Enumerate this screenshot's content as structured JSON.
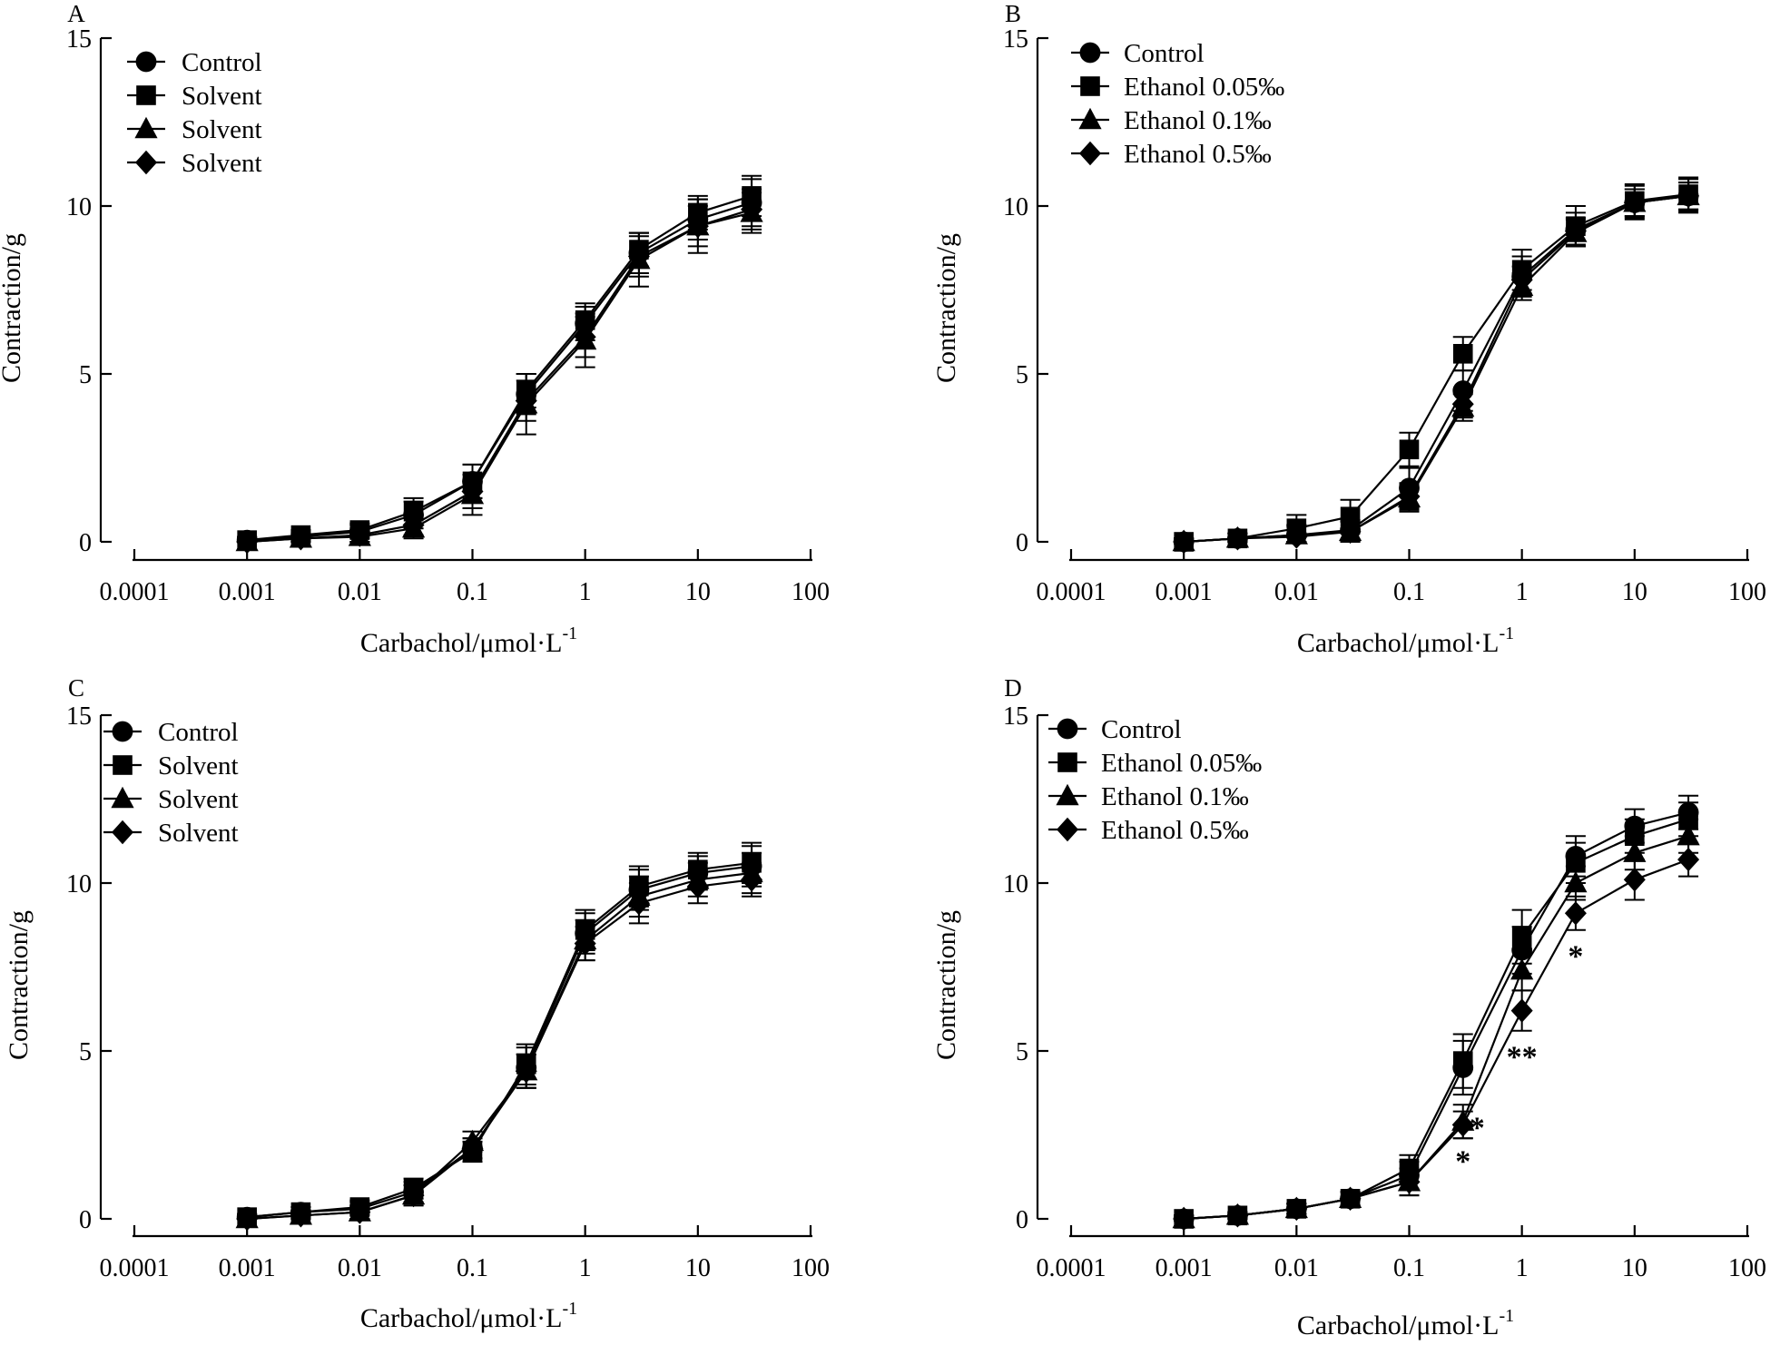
{
  "chart_data": [
    {
      "type": "line",
      "panel": "A",
      "xscale": "log",
      "xlim": [
        0.0001,
        100
      ],
      "ylim": [
        0,
        15
      ],
      "xticks": [
        "0.0001",
        "0.001",
        "0.01",
        "0.1",
        "1",
        "10",
        "100"
      ],
      "yticks": [
        "0",
        "5",
        "10",
        "15"
      ],
      "xlabel_main": "Carbachol/μmol·L",
      "xlabel_sup": "-1",
      "ylabel": "Contraction/g",
      "x": [
        0.001,
        0.003,
        0.01,
        0.03,
        0.1,
        0.3,
        1,
        3,
        10,
        30
      ],
      "series": [
        {
          "name": "Control",
          "marker": "circle",
          "values": [
            0.05,
            0.15,
            0.3,
            0.8,
            1.8,
            4.4,
            6.5,
            8.6,
            9.6,
            10.1
          ],
          "errors": [
            0.1,
            0.15,
            0.2,
            0.4,
            0.5,
            0.6,
            0.5,
            0.6,
            0.6,
            0.7
          ]
        },
        {
          "name": "Solvent",
          "marker": "square",
          "values": [
            0.05,
            0.2,
            0.35,
            0.9,
            1.8,
            4.5,
            6.6,
            8.7,
            9.8,
            10.3
          ],
          "errors": [
            0.1,
            0.15,
            0.2,
            0.4,
            0.5,
            0.5,
            0.5,
            0.5,
            0.5,
            0.6
          ]
        },
        {
          "name": "Solvent",
          "marker": "triangle",
          "values": [
            0.0,
            0.1,
            0.15,
            0.4,
            1.4,
            4.1,
            6.0,
            8.4,
            9.4,
            9.8
          ],
          "errors": [
            0.1,
            0.15,
            0.2,
            0.3,
            0.6,
            0.9,
            0.8,
            0.8,
            0.8,
            0.6
          ]
        },
        {
          "name": "Solvent",
          "marker": "diamond",
          "values": [
            0.0,
            0.1,
            0.2,
            0.5,
            1.5,
            4.2,
            6.1,
            8.5,
            9.4,
            9.9
          ],
          "errors": [
            0.1,
            0.15,
            0.2,
            0.3,
            0.5,
            0.6,
            0.6,
            0.6,
            0.6,
            0.6
          ]
        }
      ],
      "annotations": []
    },
    {
      "type": "line",
      "panel": "B",
      "xscale": "log",
      "xlim": [
        0.0001,
        100
      ],
      "ylim": [
        0,
        15
      ],
      "xticks": [
        "0.0001",
        "0.001",
        "0.01",
        "0.1",
        "1",
        "10",
        "100"
      ],
      "yticks": [
        "0",
        "5",
        "10",
        "15"
      ],
      "xlabel_main": "Carbachol/μmol·L",
      "xlabel_sup": "-1",
      "ylabel": "Contraction/g",
      "x": [
        0.001,
        0.003,
        0.01,
        0.03,
        0.1,
        0.3,
        1,
        3,
        10,
        30
      ],
      "series": [
        {
          "name": "Control",
          "marker": "circle",
          "values": [
            0.0,
            0.1,
            0.2,
            0.35,
            1.6,
            4.5,
            7.9,
            9.3,
            10.1,
            10.3
          ],
          "errors": [
            0.1,
            0.15,
            0.3,
            0.3,
            0.6,
            0.6,
            0.6,
            0.5,
            0.5,
            0.5
          ]
        },
        {
          "name": "Ethanol 0.05‰",
          "marker": "square",
          "values": [
            0.0,
            0.1,
            0.4,
            0.75,
            2.75,
            5.6,
            8.1,
            9.4,
            10.15,
            10.35
          ],
          "errors": [
            0.1,
            0.15,
            0.4,
            0.5,
            0.5,
            0.5,
            0.6,
            0.6,
            0.5,
            0.5
          ]
        },
        {
          "name": "Ethanol 0.1‰",
          "marker": "triangle",
          "values": [
            0.0,
            0.1,
            0.2,
            0.3,
            1.3,
            4.0,
            7.6,
            9.2,
            10.1,
            10.3
          ],
          "errors": [
            0.1,
            0.15,
            0.3,
            0.3,
            0.4,
            0.4,
            0.4,
            0.4,
            0.4,
            0.4
          ]
        },
        {
          "name": "Ethanol 0.5‰",
          "marker": "diamond",
          "values": [
            0.0,
            0.1,
            0.15,
            0.3,
            1.35,
            4.1,
            7.8,
            9.25,
            10.1,
            10.3
          ],
          "errors": [
            0.1,
            0.15,
            0.3,
            0.3,
            0.4,
            0.4,
            0.4,
            0.4,
            0.4,
            0.4
          ]
        }
      ],
      "annotations": []
    },
    {
      "type": "line",
      "panel": "C",
      "xscale": "log",
      "xlim": [
        0.0001,
        100
      ],
      "ylim": [
        0,
        15
      ],
      "xticks": [
        "0.0001",
        "0.001",
        "0.01",
        "0.1",
        "1",
        "10",
        "100"
      ],
      "yticks": [
        "0",
        "5",
        "10",
        "15"
      ],
      "xlabel_main": "Carbachol/μmol·L",
      "xlabel_sup": "-1",
      "ylabel": "Contraction/g",
      "x": [
        0.001,
        0.003,
        0.01,
        0.03,
        0.1,
        0.3,
        1,
        3,
        10,
        30
      ],
      "series": [
        {
          "name": "Control",
          "marker": "circle",
          "values": [
            0.05,
            0.2,
            0.3,
            0.8,
            2.1,
            4.5,
            8.5,
            9.8,
            10.3,
            10.5
          ],
          "errors": [
            0.1,
            0.15,
            0.2,
            0.3,
            0.3,
            0.6,
            0.6,
            0.6,
            0.5,
            0.6
          ]
        },
        {
          "name": "Solvent",
          "marker": "square",
          "values": [
            0.05,
            0.2,
            0.35,
            0.9,
            2.0,
            4.6,
            8.6,
            9.9,
            10.4,
            10.6
          ],
          "errors": [
            0.1,
            0.15,
            0.2,
            0.3,
            0.3,
            0.6,
            0.6,
            0.6,
            0.5,
            0.6
          ]
        },
        {
          "name": "Solvent",
          "marker": "triangle",
          "values": [
            0.0,
            0.1,
            0.2,
            0.7,
            2.3,
            4.4,
            8.3,
            9.6,
            10.1,
            10.3
          ],
          "errors": [
            0.1,
            0.15,
            0.2,
            0.3,
            0.3,
            0.5,
            0.6,
            0.6,
            0.5,
            0.6
          ]
        },
        {
          "name": "Solvent",
          "marker": "diamond",
          "values": [
            0.0,
            0.1,
            0.2,
            0.7,
            2.1,
            4.4,
            8.2,
            9.4,
            9.9,
            10.1
          ],
          "errors": [
            0.1,
            0.15,
            0.2,
            0.3,
            0.3,
            0.5,
            0.5,
            0.6,
            0.5,
            0.5
          ]
        }
      ],
      "annotations": []
    },
    {
      "type": "line",
      "panel": "D",
      "xscale": "log",
      "xlim": [
        0.0001,
        100
      ],
      "ylim": [
        0,
        15
      ],
      "xticks": [
        "0.0001",
        "0.001",
        "0.01",
        "0.1",
        "1",
        "10",
        "100"
      ],
      "yticks": [
        "0",
        "5",
        "10",
        "15"
      ],
      "xlabel_main": "Carbachol/μmol·L",
      "xlabel_sup": "-1",
      "ylabel": "Contraction/g",
      "x": [
        0.001,
        0.003,
        0.01,
        0.03,
        0.1,
        0.3,
        1,
        3,
        10,
        30
      ],
      "series": [
        {
          "name": "Control",
          "marker": "circle",
          "values": [
            0.0,
            0.1,
            0.3,
            0.6,
            1.3,
            4.5,
            8.0,
            10.8,
            11.7,
            12.1
          ],
          "errors": [
            0.1,
            0.1,
            0.15,
            0.2,
            0.4,
            0.8,
            0.7,
            0.6,
            0.5,
            0.5
          ]
        },
        {
          "name": "Ethanol 0.05‰",
          "marker": "square",
          "values": [
            0.0,
            0.1,
            0.3,
            0.6,
            1.5,
            4.7,
            8.4,
            10.6,
            11.4,
            11.9
          ],
          "errors": [
            0.1,
            0.1,
            0.15,
            0.2,
            0.4,
            0.8,
            0.8,
            0.6,
            0.5,
            0.5
          ]
        },
        {
          "name": "Ethanol 0.1‰",
          "marker": "triangle",
          "values": [
            0.0,
            0.1,
            0.3,
            0.6,
            1.1,
            2.9,
            7.4,
            10.0,
            10.9,
            11.4
          ],
          "errors": [
            0.1,
            0.1,
            0.15,
            0.2,
            0.4,
            0.5,
            0.6,
            0.5,
            0.5,
            0.5
          ]
        },
        {
          "name": "Ethanol 0.5‰",
          "marker": "diamond",
          "values": [
            0.0,
            0.1,
            0.3,
            0.6,
            1.1,
            2.8,
            6.2,
            9.1,
            10.1,
            10.7
          ],
          "errors": [
            0.1,
            0.1,
            0.15,
            0.2,
            0.4,
            0.4,
            0.6,
            0.5,
            0.6,
            0.5
          ]
        }
      ],
      "annotations": [
        {
          "text": "*",
          "x": 0.3,
          "y": 1.8
        },
        {
          "text": "*",
          "x": 0.4,
          "y": 2.8
        },
        {
          "text": "**",
          "x": 1,
          "y": 4.9
        },
        {
          "text": "*",
          "x": 3,
          "y": 7.9
        }
      ]
    }
  ]
}
